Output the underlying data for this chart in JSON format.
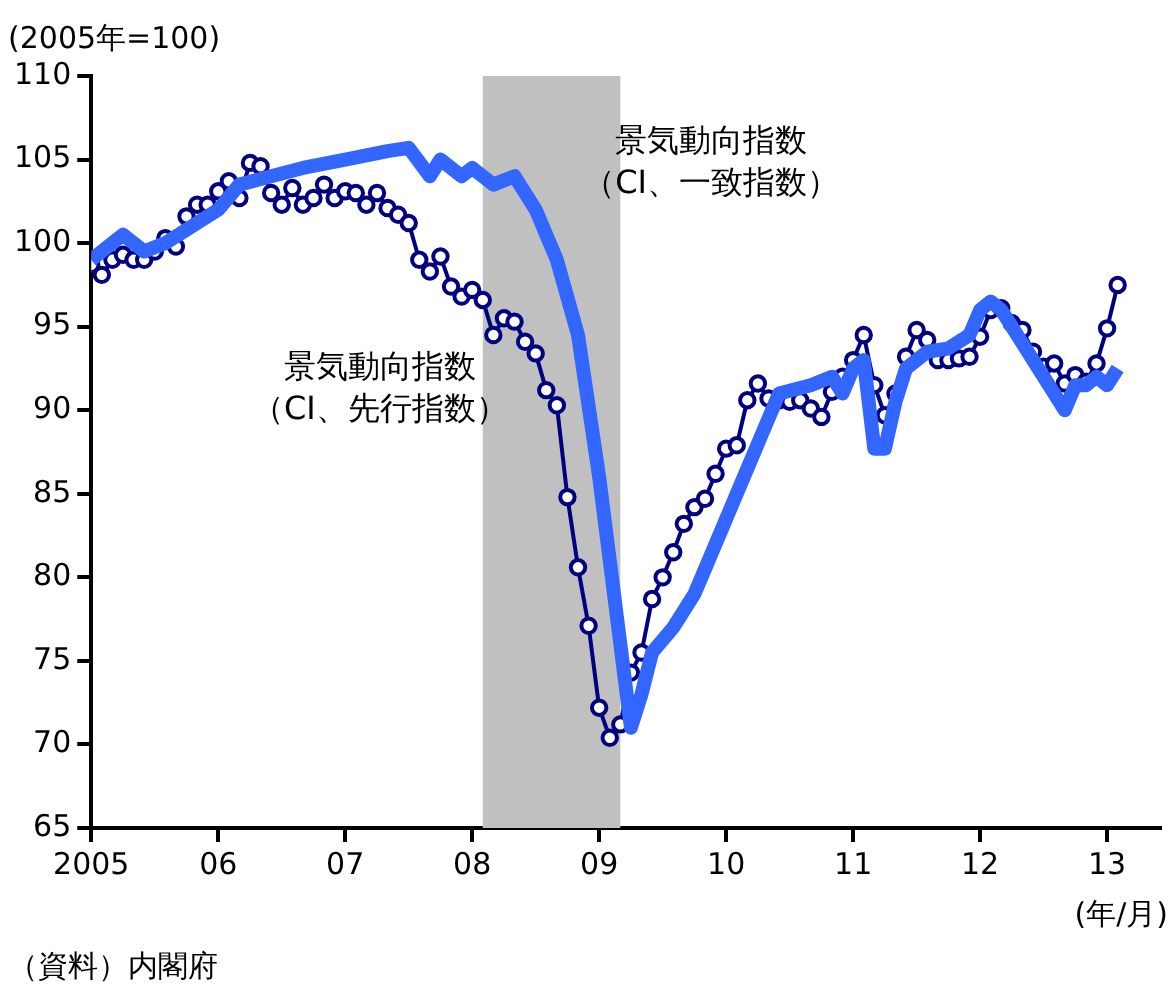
{
  "chart_data": {
    "type": "line",
    "ylabel": "(2005年=100)",
    "xlabel": "(年/月)",
    "annotations": [
      "（資料）内閣府"
    ],
    "xlim": [
      "2005-01",
      "2013-06"
    ],
    "xticks": [
      {
        "value": "2005-01",
        "label": "2005"
      },
      {
        "value": "2006-01",
        "label": "06"
      },
      {
        "value": "2007-01",
        "label": "07"
      },
      {
        "value": "2008-01",
        "label": "08"
      },
      {
        "value": "2009-01",
        "label": "09"
      },
      {
        "value": "2010-01",
        "label": "10"
      },
      {
        "value": "2011-01",
        "label": "11"
      },
      {
        "value": "2012-01",
        "label": "12"
      },
      {
        "value": "2013-01",
        "label": "13"
      }
    ],
    "ylim": [
      65,
      110
    ],
    "yticks": [
      65,
      70,
      75,
      80,
      85,
      90,
      95,
      100,
      105,
      110
    ],
    "grid": false,
    "legend": false,
    "bands": [
      {
        "axis": "x",
        "from": "2008-02",
        "to": "2009-03",
        "color": "#c0c0c0"
      }
    ],
    "series": [
      {
        "name": "景気動向指数（CI、一致指数）",
        "color": "#3366ff",
        "marker": "none",
        "x": [
          "2005-01",
          "2005-04",
          "2005-06",
          "2005-08",
          "2006-01",
          "2006-03",
          "2006-06",
          "2006-09",
          "2007-01",
          "2007-05",
          "2007-07",
          "2007-09",
          "2007-10",
          "2007-12",
          "2008-01",
          "2008-03",
          "2008-05",
          "2008-06",
          "2008-07",
          "2008-09",
          "2008-11",
          "2009-01",
          "2009-03",
          "2009-04",
          "2009-05",
          "2009-06",
          "2009-08",
          "2009-10",
          "2009-12",
          "2010-02",
          "2010-04",
          "2010-06",
          "2010-09",
          "2010-11",
          "2010-12",
          "2011-01",
          "2011-02",
          "2011-03",
          "2011-04",
          "2011-05",
          "2011-06",
          "2011-08",
          "2011-10",
          "2011-12",
          "2012-01",
          "2012-02",
          "2012-03",
          "2012-05",
          "2012-07",
          "2012-08",
          "2012-09",
          "2012-10",
          "2012-11",
          "2012-12",
          "2013-01",
          "2013-02"
        ],
        "values": [
          99,
          100.5,
          99.5,
          100,
          102,
          103.5,
          104,
          104.5,
          105,
          105.5,
          105.7,
          104,
          105,
          104,
          104.5,
          103.5,
          104,
          103,
          102,
          99,
          94.5,
          86,
          76,
          71,
          73,
          75.5,
          77,
          79,
          82,
          85,
          88,
          91,
          91.5,
          92,
          91,
          92.5,
          93,
          87.7,
          87.7,
          90.5,
          92.5,
          93.5,
          93.7,
          94.5,
          96,
          96.5,
          96,
          94,
          92,
          91,
          90,
          91.5,
          91.5,
          92,
          91.5,
          92.5
        ]
      },
      {
        "name": "景気動向指数（CI、先行指数）",
        "color": "#000080",
        "marker": "circle",
        "x": [
          "2005-01",
          "2005-02",
          "2005-03",
          "2005-04",
          "2005-05",
          "2005-06",
          "2005-07",
          "2005-08",
          "2005-09",
          "2005-10",
          "2005-11",
          "2005-12",
          "2006-01",
          "2006-02",
          "2006-03",
          "2006-04",
          "2006-05",
          "2006-06",
          "2006-07",
          "2006-08",
          "2006-09",
          "2006-10",
          "2006-11",
          "2006-12",
          "2007-01",
          "2007-02",
          "2007-03",
          "2007-04",
          "2007-05",
          "2007-06",
          "2007-07",
          "2007-08",
          "2007-09",
          "2007-10",
          "2007-11",
          "2007-12",
          "2008-01",
          "2008-02",
          "2008-03",
          "2008-04",
          "2008-05",
          "2008-06",
          "2008-07",
          "2008-08",
          "2008-09",
          "2008-10",
          "2008-11",
          "2008-12",
          "2009-01",
          "2009-02",
          "2009-03",
          "2009-04",
          "2009-05",
          "2009-06",
          "2009-07",
          "2009-08",
          "2009-09",
          "2009-10",
          "2009-11",
          "2009-12",
          "2010-01",
          "2010-02",
          "2010-03",
          "2010-04",
          "2010-05",
          "2010-06",
          "2010-07",
          "2010-08",
          "2010-09",
          "2010-10",
          "2010-11",
          "2010-12",
          "2011-01",
          "2011-02",
          "2011-03",
          "2011-04",
          "2011-05",
          "2011-06",
          "2011-07",
          "2011-08",
          "2011-09",
          "2011-10",
          "2011-11",
          "2011-12",
          "2012-01",
          "2012-02",
          "2012-03",
          "2012-04",
          "2012-05",
          "2012-06",
          "2012-07",
          "2012-08",
          "2012-09",
          "2012-10",
          "2012-11",
          "2012-12",
          "2013-01",
          "2013-02"
        ],
        "values": [
          98.7,
          98.1,
          99,
          99.3,
          99,
          99,
          99.5,
          100.3,
          99.8,
          101.6,
          102.3,
          102.3,
          103.1,
          103.7,
          102.7,
          104.8,
          104.6,
          103,
          102.3,
          103.3,
          102.3,
          102.7,
          103.5,
          102.7,
          103.1,
          103,
          102.3,
          103,
          102.1,
          101.7,
          101.2,
          99,
          98.3,
          99.2,
          97.4,
          96.8,
          97.2,
          96.6,
          94.5,
          95.5,
          95.3,
          94.1,
          93.4,
          91.2,
          90.3,
          84.8,
          80.6,
          77.1,
          72.2,
          70.4,
          71.2,
          74.3,
          75.5,
          78.7,
          80,
          81.5,
          83.2,
          84.2,
          84.7,
          86.2,
          87.7,
          87.9,
          90.6,
          91.6,
          90.7,
          90.6,
          90.5,
          90.6,
          90.1,
          89.6,
          91.1,
          92,
          93,
          94.5,
          91.5,
          89.7,
          91,
          93.2,
          94.8,
          94.2,
          93,
          93,
          93.1,
          93.2,
          94.4,
          96,
          96.1,
          95.2,
          94.8,
          93.5,
          92.6,
          92.8,
          91.6,
          92.1,
          91.7,
          92.8,
          94.9,
          97.5
        ]
      }
    ]
  }
}
